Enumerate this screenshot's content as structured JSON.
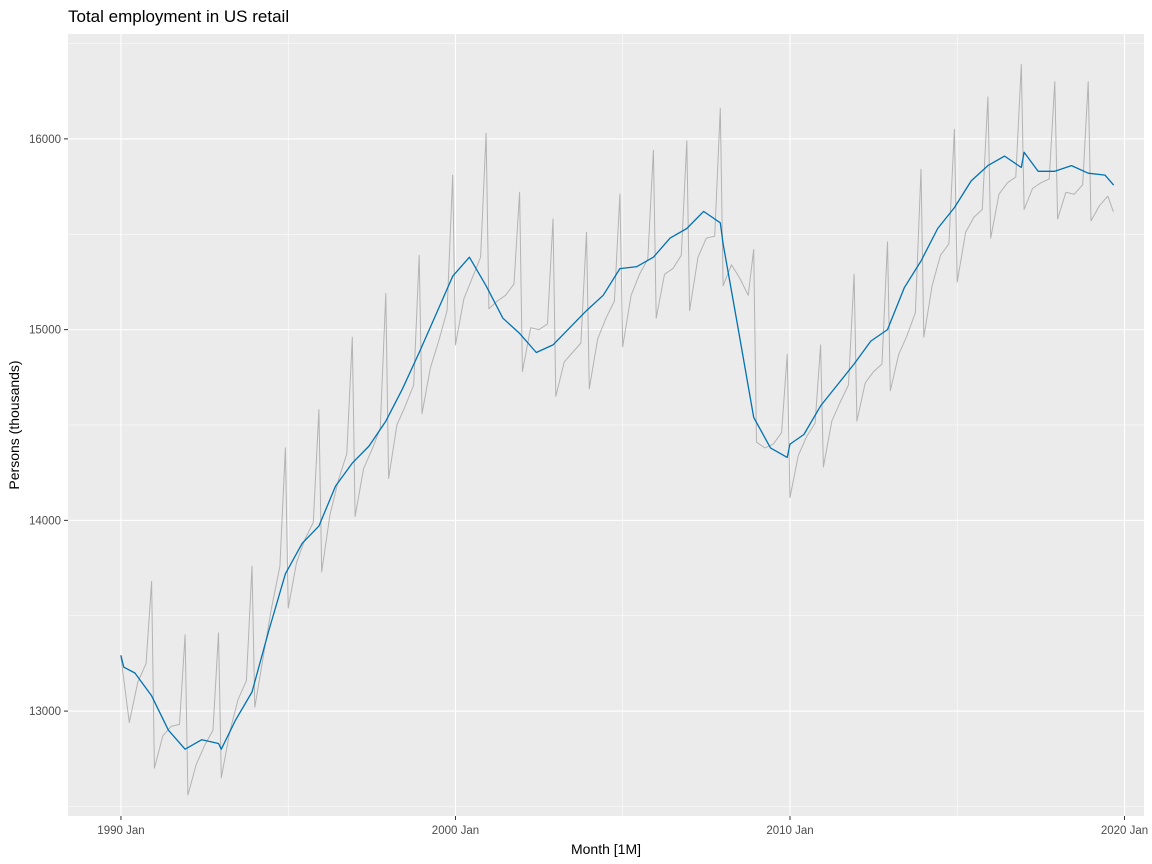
{
  "chart_data": {
    "type": "line",
    "title": "Total employment in US retail",
    "xlabel": "Month [1M]",
    "ylabel": "Persons (thousands)",
    "x_ticks": [
      "1990 Jan",
      "2000 Jan",
      "2010 Jan",
      "2020 Jan"
    ],
    "y_ticks": [
      "13000",
      "14000",
      "15000",
      "16000"
    ],
    "xlim": [
      "1988 Jun",
      "2020 Aug"
    ],
    "ylim": [
      12450,
      16550
    ],
    "grid": true,
    "legend": "none",
    "series": [
      {
        "color": "#b3b3b3",
        "role": "observed",
        "x": [
          "1990 Jan",
          "1990 Apr",
          "1990 Jul",
          "1990 Oct",
          "1990 Dec",
          "1991 Jan",
          "1991 Apr",
          "1991 Jul",
          "1991 Oct",
          "1991 Dec",
          "1992 Jan",
          "1992 Apr",
          "1992 Jul",
          "1992 Oct",
          "1992 Dec",
          "1993 Jan",
          "1993 Apr",
          "1993 Jul",
          "1993 Oct",
          "1993 Dec",
          "1994 Jan",
          "1994 Apr",
          "1994 Jul",
          "1994 Oct",
          "1994 Dec",
          "1995 Jan",
          "1995 Apr",
          "1995 Jul",
          "1995 Oct",
          "1995 Dec",
          "1996 Jan",
          "1996 Apr",
          "1996 Jul",
          "1996 Oct",
          "1996 Dec",
          "1997 Jan",
          "1997 Apr",
          "1997 Jul",
          "1997 Oct",
          "1997 Dec",
          "1998 Jan",
          "1998 Apr",
          "1998 Jul",
          "1998 Oct",
          "1998 Dec",
          "1999 Jan",
          "1999 Apr",
          "1999 Jul",
          "1999 Oct",
          "1999 Dec",
          "2000 Jan",
          "2000 Apr",
          "2000 Jul",
          "2000 Oct",
          "2000 Dec",
          "2001 Jan",
          "2001 Apr",
          "2001 Jul",
          "2001 Oct",
          "2001 Dec",
          "2002 Jan",
          "2002 Apr",
          "2002 Jul",
          "2002 Oct",
          "2002 Dec",
          "2003 Jan",
          "2003 Apr",
          "2003 Jul",
          "2003 Oct",
          "2003 Dec",
          "2004 Jan",
          "2004 Apr",
          "2004 Jul",
          "2004 Oct",
          "2004 Dec",
          "2005 Jan",
          "2005 Apr",
          "2005 Jul",
          "2005 Oct",
          "2005 Dec",
          "2006 Jan",
          "2006 Apr",
          "2006 Jul",
          "2006 Oct",
          "2006 Dec",
          "2007 Jan",
          "2007 Apr",
          "2007 Jul",
          "2007 Oct",
          "2007 Dec",
          "2008 Jan",
          "2008 Apr",
          "2008 Jul",
          "2008 Oct",
          "2008 Dec",
          "2009 Jan",
          "2009 Apr",
          "2009 Jul",
          "2009 Oct",
          "2009 Dec",
          "2010 Jan",
          "2010 Apr",
          "2010 Jul",
          "2010 Oct",
          "2010 Dec",
          "2011 Jan",
          "2011 Apr",
          "2011 Jul",
          "2011 Oct",
          "2011 Dec",
          "2012 Jan",
          "2012 Apr",
          "2012 Jul",
          "2012 Oct",
          "2012 Dec",
          "2013 Jan",
          "2013 Apr",
          "2013 Jul",
          "2013 Oct",
          "2013 Dec",
          "2014 Jan",
          "2014 Apr",
          "2014 Jul",
          "2014 Oct",
          "2014 Dec",
          "2015 Jan",
          "2015 Apr",
          "2015 Jul",
          "2015 Oct",
          "2015 Dec",
          "2016 Jan",
          "2016 Apr",
          "2016 Jul",
          "2016 Oct",
          "2016 Dec",
          "2017 Jan",
          "2017 Apr",
          "2017 Jul",
          "2017 Oct",
          "2017 Dec",
          "2018 Jan",
          "2018 Apr",
          "2018 Jul",
          "2018 Oct",
          "2018 Dec",
          "2019 Jan",
          "2019 Apr",
          "2019 Jul",
          "2019 Sep"
        ],
        "y": [
          13280,
          12940,
          13150,
          13250,
          13680,
          12700,
          12870,
          12920,
          12930,
          13400,
          12560,
          12720,
          12820,
          12900,
          13410,
          12650,
          12890,
          13060,
          13160,
          13760,
          13020,
          13280,
          13540,
          13760,
          14380,
          13540,
          13780,
          13900,
          13990,
          14580,
          13730,
          14030,
          14210,
          14350,
          14960,
          14020,
          14270,
          14370,
          14480,
          15190,
          14220,
          14500,
          14600,
          14710,
          15390,
          14560,
          14800,
          14940,
          15100,
          15810,
          14920,
          15160,
          15270,
          15380,
          16030,
          15110,
          15150,
          15180,
          15240,
          15720,
          14780,
          15010,
          15000,
          15030,
          15580,
          14650,
          14830,
          14880,
          14930,
          15510,
          14690,
          14950,
          15060,
          15150,
          15710,
          14910,
          15180,
          15290,
          15370,
          15940,
          15060,
          15290,
          15320,
          15390,
          15990,
          15100,
          15380,
          15480,
          15490,
          16160,
          15230,
          15340,
          15270,
          15180,
          15420,
          14410,
          14380,
          14400,
          14460,
          14870,
          14120,
          14340,
          14440,
          14510,
          14920,
          14280,
          14520,
          14620,
          14710,
          15290,
          14520,
          14720,
          14780,
          14820,
          15460,
          14680,
          14870,
          14970,
          15090,
          15840,
          14960,
          15230,
          15390,
          15450,
          16050,
          15250,
          15510,
          15590,
          15630,
          16220,
          15480,
          15710,
          15770,
          15800,
          16390,
          15630,
          15740,
          15770,
          15790,
          16300,
          15580,
          15720,
          15710,
          15760,
          16300,
          15570,
          15650,
          15700,
          15620
        ]
      },
      {
        "color": "#0072b2",
        "role": "seasonally adjusted",
        "x": [
          "1990 Jan",
          "1990 Feb",
          "1990 Jun",
          "1990 Dec",
          "1991 Jun",
          "1991 Dec",
          "1992 Jun",
          "1992 Dec",
          "1993 Jan",
          "1993 Jun",
          "1993 Dec",
          "1994 Jun",
          "1994 Dec",
          "1995 Jun",
          "1995 Dec",
          "1996 Jun",
          "1996 Dec",
          "1997 Jun",
          "1997 Dec",
          "1998 Jun",
          "1998 Dec",
          "1999 Jun",
          "1999 Dec",
          "2000 Jun",
          "2000 Dec",
          "2001 Jun",
          "2001 Dec",
          "2002 Jun",
          "2002 Dec",
          "2003 Jun",
          "2003 Dec",
          "2004 Jun",
          "2004 Dec",
          "2005 Jun",
          "2005 Dec",
          "2006 Jun",
          "2006 Dec",
          "2007 Jun",
          "2007 Dec",
          "2008 Jan",
          "2008 Jun",
          "2008 Dec",
          "2009 Jun",
          "2009 Dec",
          "2010 Jan",
          "2010 Jun",
          "2010 Dec",
          "2011 Jun",
          "2011 Dec",
          "2012 Jun",
          "2012 Dec",
          "2013 Jun",
          "2013 Dec",
          "2014 Jun",
          "2014 Dec",
          "2015 Jun",
          "2015 Dec",
          "2016 Jun",
          "2016 Dec",
          "2017 Jan",
          "2017 Jun",
          "2017 Dec",
          "2018 Jun",
          "2018 Dec",
          "2019 Jun",
          "2019 Sep"
        ],
        "y": [
          13290,
          13230,
          13200,
          13080,
          12900,
          12800,
          12850,
          12830,
          12800,
          12950,
          13100,
          13420,
          13720,
          13880,
          13970,
          14180,
          14300,
          14390,
          14520,
          14690,
          14880,
          15080,
          15280,
          15380,
          15230,
          15060,
          14980,
          14880,
          14920,
          15010,
          15100,
          15180,
          15320,
          15330,
          15380,
          15480,
          15530,
          15620,
          15560,
          15450,
          15040,
          14540,
          14380,
          14330,
          14400,
          14450,
          14600,
          14710,
          14820,
          14940,
          15000,
          15220,
          15360,
          15530,
          15640,
          15780,
          15860,
          15910,
          15850,
          15930,
          15830,
          15830,
          15860,
          15820,
          15810,
          15760
        ]
      }
    ]
  }
}
